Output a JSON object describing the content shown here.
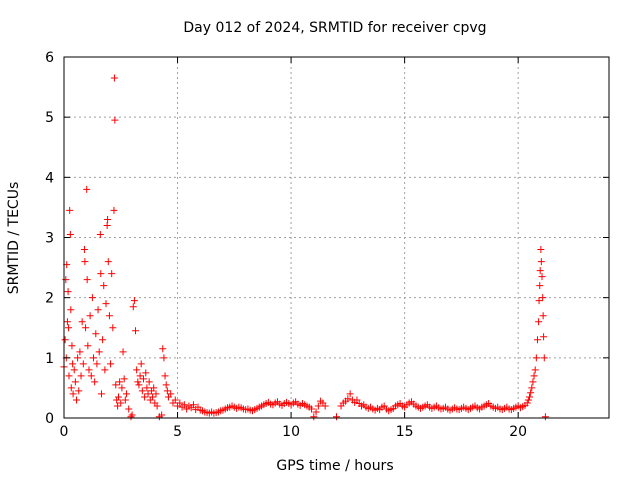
{
  "chart_data": {
    "type": "scatter",
    "title": "Day 012 of 2024, SRMTID for receiver cpvg",
    "xlabel": "GPS time / hours",
    "ylabel": "SRMTID / TECUs",
    "xlim": [
      0,
      24
    ],
    "ylim": [
      0,
      6
    ],
    "xticks": [
      0,
      5,
      10,
      15,
      20
    ],
    "yticks": [
      0,
      1,
      2,
      3,
      4,
      5,
      6
    ],
    "grid": true,
    "marker": "+",
    "colors": {
      "series": "#ff0000",
      "grid": "#a0a0a0",
      "axis": "#000000"
    },
    "series": [
      {
        "name": "SRMTID",
        "points": [
          [
            0.0,
            0.85
          ],
          [
            0.05,
            1.3
          ],
          [
            0.08,
            2.3
          ],
          [
            0.1,
            1.0
          ],
          [
            0.12,
            2.55
          ],
          [
            0.15,
            1.6
          ],
          [
            0.18,
            2.1
          ],
          [
            0.2,
            1.5
          ],
          [
            0.22,
            0.7
          ],
          [
            0.25,
            3.45
          ],
          [
            0.28,
            3.05
          ],
          [
            0.3,
            1.8
          ],
          [
            0.32,
            0.5
          ],
          [
            0.35,
            1.2
          ],
          [
            0.38,
            0.9
          ],
          [
            0.4,
            0.4
          ],
          [
            0.45,
            0.8
          ],
          [
            0.5,
            0.6
          ],
          [
            0.55,
            0.3
          ],
          [
            0.6,
            1.0
          ],
          [
            0.65,
            0.45
          ],
          [
            0.7,
            1.1
          ],
          [
            0.75,
            0.7
          ],
          [
            0.8,
            1.6
          ],
          [
            0.85,
            0.9
          ],
          [
            0.9,
            2.8
          ],
          [
            0.92,
            2.6
          ],
          [
            0.95,
            1.5
          ],
          [
            1.0,
            3.8
          ],
          [
            1.02,
            2.3
          ],
          [
            1.05,
            1.2
          ],
          [
            1.1,
            0.8
          ],
          [
            1.15,
            1.7
          ],
          [
            1.2,
            0.7
          ],
          [
            1.25,
            2.0
          ],
          [
            1.3,
            1.0
          ],
          [
            1.35,
            0.6
          ],
          [
            1.4,
            1.4
          ],
          [
            1.45,
            0.9
          ],
          [
            1.5,
            1.8
          ],
          [
            1.55,
            1.1
          ],
          [
            1.6,
            3.05
          ],
          [
            1.62,
            2.4
          ],
          [
            1.65,
            0.4
          ],
          [
            1.7,
            1.3
          ],
          [
            1.75,
            2.2
          ],
          [
            1.8,
            0.8
          ],
          [
            1.85,
            1.9
          ],
          [
            1.9,
            3.2
          ],
          [
            1.92,
            3.3
          ],
          [
            1.95,
            2.6
          ],
          [
            2.0,
            1.7
          ],
          [
            2.05,
            0.9
          ],
          [
            2.1,
            2.4
          ],
          [
            2.15,
            1.5
          ],
          [
            2.2,
            3.45
          ],
          [
            2.22,
            5.65
          ],
          [
            2.24,
            4.95
          ],
          [
            2.28,
            0.55
          ],
          [
            2.32,
            0.3
          ],
          [
            2.36,
            0.2
          ],
          [
            2.4,
            0.35
          ],
          [
            2.45,
            0.6
          ],
          [
            2.5,
            0.25
          ],
          [
            2.55,
            0.5
          ],
          [
            2.6,
            1.1
          ],
          [
            2.65,
            0.65
          ],
          [
            2.7,
            0.3
          ],
          [
            2.75,
            0.4
          ],
          [
            2.85,
            0.15
          ],
          [
            2.95,
            0.02
          ],
          [
            3.0,
            0.05
          ],
          [
            3.05,
            1.85
          ],
          [
            3.1,
            1.95
          ],
          [
            3.15,
            1.45
          ],
          [
            3.2,
            0.8
          ],
          [
            3.25,
            0.6
          ],
          [
            3.3,
            0.55
          ],
          [
            3.35,
            0.7
          ],
          [
            3.4,
            0.9
          ],
          [
            3.45,
            0.45
          ],
          [
            3.5,
            0.65
          ],
          [
            3.55,
            0.35
          ],
          [
            3.6,
            0.75
          ],
          [
            3.65,
            0.5
          ],
          [
            3.7,
            0.4
          ],
          [
            3.75,
            0.6
          ],
          [
            3.8,
            0.3
          ],
          [
            3.85,
            0.45
          ],
          [
            3.9,
            0.35
          ],
          [
            3.95,
            0.5
          ],
          [
            4.0,
            0.25
          ],
          [
            4.05,
            0.4
          ],
          [
            4.1,
            0.2
          ],
          [
            4.2,
            0.02
          ],
          [
            4.3,
            0.05
          ],
          [
            4.35,
            1.15
          ],
          [
            4.4,
            1.0
          ],
          [
            4.45,
            0.7
          ],
          [
            4.5,
            0.55
          ],
          [
            4.55,
            0.45
          ],
          [
            4.6,
            0.35
          ],
          [
            4.7,
            0.4
          ],
          [
            4.8,
            0.25
          ],
          [
            4.9,
            0.3
          ],
          [
            5.0,
            0.2
          ],
          [
            5.1,
            0.25
          ],
          [
            5.2,
            0.18
          ],
          [
            5.3,
            0.22
          ],
          [
            5.4,
            0.15
          ],
          [
            5.5,
            0.2
          ],
          [
            5.6,
            0.17
          ],
          [
            5.7,
            0.22
          ],
          [
            5.8,
            0.14
          ],
          [
            5.9,
            0.18
          ],
          [
            6.0,
            0.13
          ],
          [
            6.1,
            0.12
          ],
          [
            6.2,
            0.1
          ],
          [
            6.3,
            0.09
          ],
          [
            6.4,
            0.08
          ],
          [
            6.5,
            0.1
          ],
          [
            6.6,
            0.08
          ],
          [
            6.7,
            0.09
          ],
          [
            6.8,
            0.1
          ],
          [
            6.9,
            0.12
          ],
          [
            7.0,
            0.13
          ],
          [
            7.1,
            0.15
          ],
          [
            7.2,
            0.17
          ],
          [
            7.3,
            0.18
          ],
          [
            7.4,
            0.2
          ],
          [
            7.5,
            0.18
          ],
          [
            7.6,
            0.16
          ],
          [
            7.7,
            0.18
          ],
          [
            7.8,
            0.17
          ],
          [
            7.9,
            0.15
          ],
          [
            8.0,
            0.14
          ],
          [
            8.1,
            0.15
          ],
          [
            8.2,
            0.13
          ],
          [
            8.3,
            0.12
          ],
          [
            8.4,
            0.14
          ],
          [
            8.5,
            0.16
          ],
          [
            8.6,
            0.18
          ],
          [
            8.7,
            0.2
          ],
          [
            8.8,
            0.22
          ],
          [
            8.9,
            0.24
          ],
          [
            9.0,
            0.26
          ],
          [
            9.1,
            0.23
          ],
          [
            9.2,
            0.22
          ],
          [
            9.3,
            0.25
          ],
          [
            9.4,
            0.27
          ],
          [
            9.5,
            0.23
          ],
          [
            9.6,
            0.21
          ],
          [
            9.7,
            0.24
          ],
          [
            9.8,
            0.26
          ],
          [
            9.9,
            0.24
          ],
          [
            10.0,
            0.22
          ],
          [
            10.1,
            0.25
          ],
          [
            10.2,
            0.27
          ],
          [
            10.3,
            0.23
          ],
          [
            10.4,
            0.21
          ],
          [
            10.5,
            0.24
          ],
          [
            10.6,
            0.22
          ],
          [
            10.7,
            0.2
          ],
          [
            10.8,
            0.18
          ],
          [
            10.9,
            0.15
          ],
          [
            11.0,
            0.02
          ],
          [
            11.1,
            0.1
          ],
          [
            11.2,
            0.2
          ],
          [
            11.3,
            0.28
          ],
          [
            11.4,
            0.25
          ],
          [
            11.5,
            0.2
          ],
          [
            12.0,
            0.02
          ],
          [
            12.2,
            0.2
          ],
          [
            12.3,
            0.25
          ],
          [
            12.4,
            0.28
          ],
          [
            12.5,
            0.32
          ],
          [
            12.6,
            0.4
          ],
          [
            12.7,
            0.3
          ],
          [
            12.8,
            0.26
          ],
          [
            12.9,
            0.3
          ],
          [
            13.0,
            0.24
          ],
          [
            13.1,
            0.2
          ],
          [
            13.2,
            0.22
          ],
          [
            13.3,
            0.18
          ],
          [
            13.4,
            0.16
          ],
          [
            13.5,
            0.18
          ],
          [
            13.6,
            0.15
          ],
          [
            13.7,
            0.13
          ],
          [
            13.8,
            0.16
          ],
          [
            13.9,
            0.14
          ],
          [
            14.0,
            0.18
          ],
          [
            14.1,
            0.2
          ],
          [
            14.2,
            0.15
          ],
          [
            14.3,
            0.12
          ],
          [
            14.4,
            0.14
          ],
          [
            14.5,
            0.16
          ],
          [
            14.6,
            0.2
          ],
          [
            14.7,
            0.22
          ],
          [
            14.8,
            0.24
          ],
          [
            14.9,
            0.2
          ],
          [
            15.0,
            0.18
          ],
          [
            15.1,
            0.22
          ],
          [
            15.2,
            0.25
          ],
          [
            15.3,
            0.27
          ],
          [
            15.4,
            0.23
          ],
          [
            15.5,
            0.2
          ],
          [
            15.6,
            0.18
          ],
          [
            15.7,
            0.16
          ],
          [
            15.8,
            0.18
          ],
          [
            15.9,
            0.2
          ],
          [
            16.0,
            0.22
          ],
          [
            16.1,
            0.18
          ],
          [
            16.2,
            0.16
          ],
          [
            16.3,
            0.18
          ],
          [
            16.4,
            0.2
          ],
          [
            16.5,
            0.17
          ],
          [
            16.6,
            0.15
          ],
          [
            16.7,
            0.16
          ],
          [
            16.8,
            0.18
          ],
          [
            16.9,
            0.15
          ],
          [
            17.0,
            0.13
          ],
          [
            17.1,
            0.15
          ],
          [
            17.2,
            0.17
          ],
          [
            17.3,
            0.15
          ],
          [
            17.4,
            0.14
          ],
          [
            17.5,
            0.16
          ],
          [
            17.6,
            0.18
          ],
          [
            17.7,
            0.16
          ],
          [
            17.8,
            0.14
          ],
          [
            17.9,
            0.16
          ],
          [
            18.0,
            0.18
          ],
          [
            18.1,
            0.2
          ],
          [
            18.2,
            0.17
          ],
          [
            18.3,
            0.15
          ],
          [
            18.4,
            0.18
          ],
          [
            18.5,
            0.2
          ],
          [
            18.6,
            0.22
          ],
          [
            18.7,
            0.24
          ],
          [
            18.8,
            0.2
          ],
          [
            18.9,
            0.18
          ],
          [
            19.0,
            0.16
          ],
          [
            19.1,
            0.18
          ],
          [
            19.2,
            0.15
          ],
          [
            19.3,
            0.14
          ],
          [
            19.4,
            0.16
          ],
          [
            19.5,
            0.18
          ],
          [
            19.6,
            0.15
          ],
          [
            19.7,
            0.14
          ],
          [
            19.8,
            0.16
          ],
          [
            19.9,
            0.18
          ],
          [
            20.0,
            0.2
          ],
          [
            20.1,
            0.17
          ],
          [
            20.2,
            0.19
          ],
          [
            20.3,
            0.21
          ],
          [
            20.4,
            0.25
          ],
          [
            20.45,
            0.3
          ],
          [
            20.5,
            0.35
          ],
          [
            20.55,
            0.42
          ],
          [
            20.6,
            0.5
          ],
          [
            20.65,
            0.6
          ],
          [
            20.7,
            0.7
          ],
          [
            20.75,
            0.8
          ],
          [
            20.8,
            1.0
          ],
          [
            20.85,
            1.3
          ],
          [
            20.9,
            1.6
          ],
          [
            20.92,
            1.95
          ],
          [
            20.95,
            2.2
          ],
          [
            20.97,
            2.45
          ],
          [
            21.0,
            2.8
          ],
          [
            21.02,
            2.6
          ],
          [
            21.05,
            2.35
          ],
          [
            21.08,
            2.0
          ],
          [
            21.1,
            1.7
          ],
          [
            21.12,
            1.35
          ],
          [
            21.15,
            1.0
          ],
          [
            21.2,
            0.02
          ]
        ]
      }
    ]
  }
}
